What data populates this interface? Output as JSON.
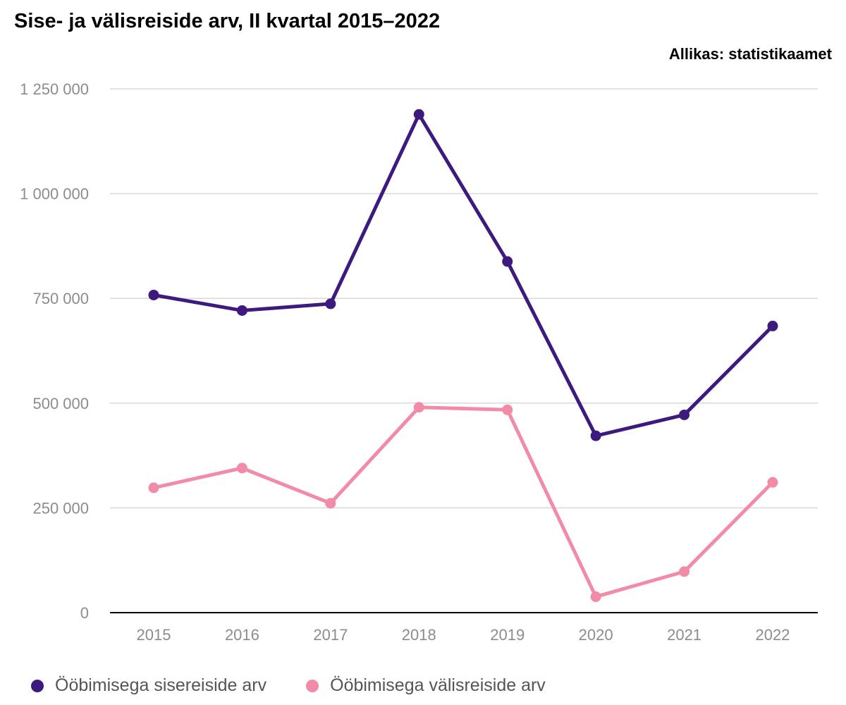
{
  "header": {
    "title": "Sise- ja välisreiside arv, II kvartal 2015–2022",
    "source": "Allikas: statistikaamet"
  },
  "colors": {
    "series1": "#3d1a7e",
    "series2": "#f28ba8",
    "grid": "#d9d9d9",
    "axis": "#000000",
    "tick_text": "#8c8c8c"
  },
  "chart_data": {
    "type": "line",
    "title": "Sise- ja välisreiside arv, II kvartal 2015–2022",
    "xlabel": "",
    "ylabel": "",
    "x": [
      "2015",
      "2016",
      "2017",
      "2018",
      "2019",
      "2020",
      "2021",
      "2022"
    ],
    "ylim": [
      0,
      1250000
    ],
    "yticks": [
      0,
      250000,
      500000,
      750000,
      1000000,
      1250000
    ],
    "ytick_labels": [
      "0",
      "250 000",
      "500 000",
      "750 000",
      "1 000 000",
      "1 250 000"
    ],
    "grid": true,
    "legend_position": "bottom-left",
    "series": [
      {
        "name": "Ööbimisega sisereiside arv",
        "color": "#3d1a7e",
        "values": [
          758000,
          721000,
          737000,
          1189000,
          838000,
          422000,
          472000,
          684000
        ]
      },
      {
        "name": "Ööbimisega välisreiside arv",
        "color": "#f28ba8",
        "values": [
          298000,
          345000,
          261000,
          490000,
          484000,
          38000,
          98000,
          311000
        ]
      }
    ]
  },
  "legend": {
    "items": [
      {
        "label": "Ööbimisega sisereiside arv",
        "color": "#3d1a7e"
      },
      {
        "label": "Ööbimisega välisreiside arv",
        "color": "#f28ba8"
      }
    ]
  }
}
